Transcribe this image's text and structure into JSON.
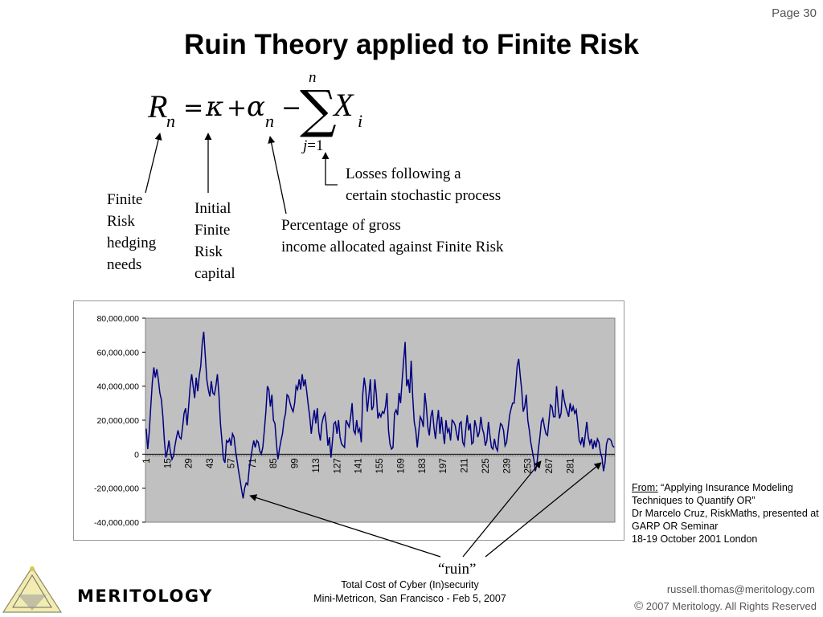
{
  "page": {
    "number": "Page 30",
    "title": "Ruin Theory applied to Finite Risk"
  },
  "labels": {
    "finite_risk": "Finite\nRisk\nhedging\nneeds",
    "initial_capital": "Initial\nFinite\nRisk\ncapital",
    "percentage": "Percentage of gross\nincome allocated against Finite Risk",
    "losses": "Losses following a\ncertain stochastic process",
    "ruin": "“ruin”"
  },
  "source": {
    "from_label": "From:",
    "text": " “Applying Insurance Modeling Techniques to Quantify OR”\nDr Marcelo Cruz, RiskMaths, presented at\nGARP OR Seminar\n18-19 October 2001 London"
  },
  "footer": {
    "center_line1": "Total Cost of Cyber (In)security",
    "center_line2": "Mini-Metricon, San Francisco - Feb 5, 2007",
    "email": "russell.thomas@meritology.com",
    "copyright_symbol": "©",
    "copyright": " 2007 Meritology. All Rights Reserved",
    "logo_text": "MERITOLOGY"
  },
  "colors": {
    "plot_bg": "#c0c0c0",
    "series": "#000080",
    "arrow": "#000000"
  },
  "chart_data": {
    "type": "line",
    "title": "",
    "xlabel": "",
    "ylabel": "",
    "ylim": [
      -40000000,
      80000000
    ],
    "y_ticks": [
      "80,000,000",
      "60,000,000",
      "40,000,000",
      "20,000,000",
      "0",
      "-20,000,000",
      "-40,000,000"
    ],
    "x_ticks": [
      "1",
      "15",
      "29",
      "43",
      "57",
      "71",
      "85",
      "99",
      "113",
      "127",
      "141",
      "155",
      "169",
      "183",
      "197",
      "211",
      "225",
      "239",
      "253",
      "267",
      "281"
    ],
    "grid": false,
    "series": [
      {
        "values": [
          15000000,
          3000000,
          13000000,
          28000000,
          42000000,
          51000000,
          45000000,
          50000000,
          44000000,
          36000000,
          32000000,
          22000000,
          8000000,
          -2000000,
          2000000,
          8000000,
          1000000,
          -3000000,
          -1000000,
          5000000,
          10000000,
          14000000,
          10000000,
          9000000,
          16000000,
          24000000,
          27000000,
          17000000,
          28000000,
          40000000,
          47000000,
          40000000,
          33000000,
          45000000,
          37000000,
          46000000,
          52000000,
          65000000,
          72000000,
          58000000,
          44000000,
          38000000,
          34000000,
          43000000,
          36000000,
          35000000,
          40000000,
          47000000,
          35000000,
          18000000,
          8000000,
          -3000000,
          -5000000,
          8000000,
          7000000,
          9000000,
          5000000,
          12000000,
          10000000,
          2000000,
          -4000000,
          -10000000,
          -15000000,
          -21000000,
          -26000000,
          -20000000,
          -17000000,
          -18000000,
          -9000000,
          -3000000,
          3000000,
          8000000,
          4000000,
          8000000,
          7000000,
          2000000,
          0,
          4000000,
          14000000,
          25000000,
          40000000,
          38000000,
          28000000,
          35000000,
          20000000,
          18000000,
          6000000,
          -3000000,
          3000000,
          8000000,
          12000000,
          20000000,
          24000000,
          35000000,
          34000000,
          30000000,
          27000000,
          25000000,
          30000000,
          40000000,
          38000000,
          44000000,
          38000000,
          47000000,
          40000000,
          44000000,
          37000000,
          29000000,
          22000000,
          12000000,
          20000000,
          26000000,
          18000000,
          27000000,
          13000000,
          8000000,
          18000000,
          22000000,
          24000000,
          17000000,
          5000000,
          10000000,
          -2000000,
          8000000,
          18000000,
          19000000,
          12000000,
          20000000,
          10000000,
          6000000,
          5000000,
          4000000,
          20000000,
          18000000,
          16000000,
          22000000,
          30000000,
          14000000,
          12000000,
          20000000,
          13000000,
          15000000,
          7000000,
          35000000,
          45000000,
          38000000,
          25000000,
          34000000,
          44000000,
          26000000,
          28000000,
          44000000,
          35000000,
          21000000,
          24000000,
          22000000,
          25000000,
          24000000,
          28000000,
          36000000,
          14000000,
          6000000,
          3000000,
          4000000,
          24000000,
          26000000,
          23000000,
          36000000,
          30000000,
          43000000,
          55000000,
          66000000,
          40000000,
          44000000,
          36000000,
          55000000,
          34000000,
          19000000,
          14000000,
          4000000,
          13000000,
          22000000,
          20000000,
          16000000,
          36000000,
          28000000,
          16000000,
          11000000,
          22000000,
          26000000,
          16000000,
          9000000,
          18000000,
          26000000,
          12000000,
          22000000,
          13000000,
          6000000,
          20000000,
          13000000,
          15000000,
          8000000,
          20000000,
          19000000,
          17000000,
          12000000,
          8000000,
          18000000,
          19000000,
          7000000,
          5000000,
          14000000,
          23000000,
          14000000,
          18000000,
          6000000,
          7000000,
          20000000,
          16000000,
          10000000,
          13000000,
          22000000,
          15000000,
          12000000,
          5000000,
          8000000,
          19000000,
          11000000,
          4000000,
          3000000,
          9000000,
          4000000,
          2000000,
          12000000,
          18000000,
          17000000,
          14000000,
          5000000,
          7000000,
          15000000,
          23000000,
          27000000,
          30000000,
          30000000,
          40000000,
          52000000,
          56000000,
          46000000,
          38000000,
          25000000,
          28000000,
          35000000,
          20000000,
          14000000,
          7000000,
          2000000,
          -3000000,
          -10000000,
          -6000000,
          3000000,
          10000000,
          19000000,
          21000000,
          16000000,
          12000000,
          11000000,
          20000000,
          29000000,
          28000000,
          22000000,
          22000000,
          40000000,
          28000000,
          21000000,
          24000000,
          38000000,
          32000000,
          28000000,
          25000000,
          22000000,
          30000000,
          25000000,
          28000000,
          24000000,
          26000000,
          18000000,
          8000000,
          6000000,
          10000000,
          4000000,
          12000000,
          19000000,
          10000000,
          6000000,
          9000000,
          3000000,
          8000000,
          4000000,
          9000000,
          7000000,
          1000000,
          -2000000,
          -10000000,
          -5000000,
          6000000,
          9000000,
          9000000,
          8000000,
          5000000,
          4000000
        ]
      }
    ]
  }
}
